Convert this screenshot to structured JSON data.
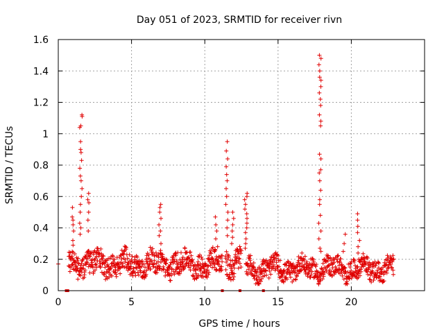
{
  "chart_data": {
    "type": "scatter",
    "title": "Day 051 of 2023, SRMTID for receiver rivn",
    "xlabel": "GPS time / hours",
    "ylabel": "SRMTID / TECUs",
    "xlim": [
      0,
      25
    ],
    "ylim": [
      0,
      1.6
    ],
    "xticks": [
      0,
      5,
      10,
      15,
      20
    ],
    "yticks": [
      0,
      0.2,
      0.4,
      0.6,
      0.8,
      1,
      1.2,
      1.4,
      1.6
    ],
    "ytick_labels": [
      "0",
      "0.2",
      "0.4",
      "0.6",
      "0.8",
      "1",
      "1.2",
      "1.4",
      "1.6"
    ],
    "grid": true,
    "marker": "+",
    "color": "#e00000",
    "baseline_segments": [
      {
        "x_start": 0.7,
        "x_end": 11.2,
        "base": 0.17,
        "spread": 0.07
      },
      {
        "x_start": 11.4,
        "x_end": 12.5,
        "base": 0.18,
        "spread": 0.08
      },
      {
        "x_start": 12.8,
        "x_end": 22.9,
        "base": 0.14,
        "spread": 0.06
      }
    ],
    "spikes": [
      {
        "x": 1.0,
        "values": [
          0.53,
          0.47,
          0.45,
          0.42,
          0.38,
          0.32,
          0.29
        ]
      },
      {
        "x": 1.55,
        "values": [
          1.12,
          1.11,
          1.05,
          1.04,
          0.95,
          0.9,
          0.88,
          0.83,
          0.78,
          0.73,
          0.7,
          0.65,
          0.6,
          0.55,
          0.5,
          0.43,
          0.4,
          0.36
        ]
      },
      {
        "x": 2.1,
        "values": [
          0.62,
          0.58,
          0.56,
          0.5,
          0.45,
          0.38
        ]
      },
      {
        "x": 6.95,
        "values": [
          0.55,
          0.53,
          0.5,
          0.46,
          0.42,
          0.38,
          0.35,
          0.3
        ]
      },
      {
        "x": 10.8,
        "values": [
          0.47,
          0.42,
          0.38,
          0.33,
          0.28
        ]
      },
      {
        "x": 11.5,
        "values": [
          0.95,
          0.89,
          0.84,
          0.79,
          0.74,
          0.7,
          0.65,
          0.6,
          0.55,
          0.5,
          0.45,
          0.4,
          0.35
        ]
      },
      {
        "x": 11.9,
        "values": [
          0.5,
          0.46,
          0.42,
          0.38,
          0.34,
          0.3
        ]
      },
      {
        "x": 12.8,
        "values": [
          0.62,
          0.6,
          0.58,
          0.55,
          0.52,
          0.49,
          0.46,
          0.43,
          0.4,
          0.37,
          0.33,
          0.3,
          0.27
        ]
      },
      {
        "x": 17.85,
        "values": [
          1.5,
          1.48,
          1.44,
          1.4,
          1.36,
          1.34,
          1.3,
          1.26,
          1.22,
          1.18,
          1.12,
          1.08,
          1.05,
          0.87,
          0.84,
          0.77,
          0.75,
          0.7,
          0.64,
          0.58,
          0.55,
          0.48,
          0.43,
          0.38,
          0.33,
          0.27,
          0.25
        ]
      },
      {
        "x": 19.5,
        "values": [
          0.36,
          0.3,
          0.25
        ]
      },
      {
        "x": 20.5,
        "values": [
          0.49,
          0.45,
          0.41,
          0.37,
          0.32,
          0.28,
          0.24
        ]
      }
    ],
    "gap_markers_x": [
      0.55,
      0.65,
      11.2,
      12.4,
      14.0
    ]
  }
}
